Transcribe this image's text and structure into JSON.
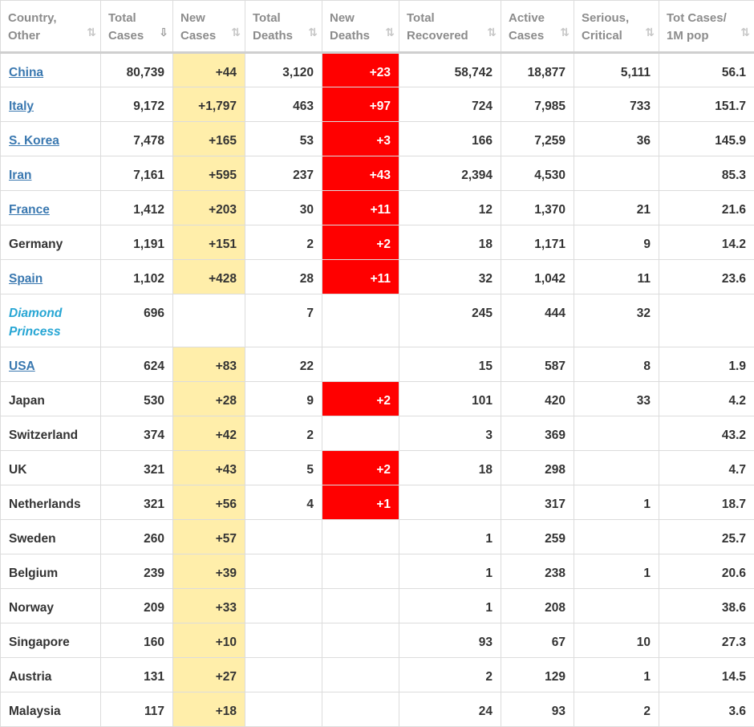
{
  "columns": [
    {
      "key": "country",
      "line1": "Country,",
      "line2": "Other"
    },
    {
      "key": "total_cases",
      "line1": "Total",
      "line2": "Cases",
      "sorted": true
    },
    {
      "key": "new_cases",
      "line1": "New",
      "line2": "Cases"
    },
    {
      "key": "total_deaths",
      "line1": "Total",
      "line2": "Deaths"
    },
    {
      "key": "new_deaths",
      "line1": "New",
      "line2": "Deaths"
    },
    {
      "key": "total_recovered",
      "line1": "Total",
      "line2": "Recovered"
    },
    {
      "key": "active_cases",
      "line1": "Active",
      "line2": "Cases"
    },
    {
      "key": "serious_critical",
      "line1": "Serious,",
      "line2": "Critical"
    },
    {
      "key": "tot_cases_per_1m",
      "line1": "Tot Cases/",
      "line2": "1M pop"
    }
  ],
  "sort_icons": {
    "unsorted": "⇅",
    "sorted": "⇩"
  },
  "colors": {
    "new_cases_bg": "#ffeeaa",
    "new_deaths_bg": "#ff0000",
    "link": "#3a78b0",
    "ship": "#27a6d4"
  },
  "rows": [
    {
      "country": "China",
      "type": "link",
      "total_cases": "80,739",
      "new_cases": "+44",
      "total_deaths": "3,120",
      "new_deaths": "+23",
      "total_recovered": "58,742",
      "active_cases": "18,877",
      "serious_critical": "5,111",
      "tot_cases_per_1m": "56.1"
    },
    {
      "country": "Italy",
      "type": "link",
      "total_cases": "9,172",
      "new_cases": "+1,797",
      "total_deaths": "463",
      "new_deaths": "+97",
      "total_recovered": "724",
      "active_cases": "7,985",
      "serious_critical": "733",
      "tot_cases_per_1m": "151.7"
    },
    {
      "country": "S. Korea",
      "type": "link",
      "total_cases": "7,478",
      "new_cases": "+165",
      "total_deaths": "53",
      "new_deaths": "+3",
      "total_recovered": "166",
      "active_cases": "7,259",
      "serious_critical": "36",
      "tot_cases_per_1m": "145.9"
    },
    {
      "country": "Iran",
      "type": "link",
      "total_cases": "7,161",
      "new_cases": "+595",
      "total_deaths": "237",
      "new_deaths": "+43",
      "total_recovered": "2,394",
      "active_cases": "4,530",
      "serious_critical": "",
      "tot_cases_per_1m": "85.3"
    },
    {
      "country": "France",
      "type": "link",
      "total_cases": "1,412",
      "new_cases": "+203",
      "total_deaths": "30",
      "new_deaths": "+11",
      "total_recovered": "12",
      "active_cases": "1,370",
      "serious_critical": "21",
      "tot_cases_per_1m": "21.6"
    },
    {
      "country": "Germany",
      "type": "plain",
      "total_cases": "1,191",
      "new_cases": "+151",
      "total_deaths": "2",
      "new_deaths": "+2",
      "total_recovered": "18",
      "active_cases": "1,171",
      "serious_critical": "9",
      "tot_cases_per_1m": "14.2"
    },
    {
      "country": "Spain",
      "type": "link",
      "total_cases": "1,102",
      "new_cases": "+428",
      "total_deaths": "28",
      "new_deaths": "+11",
      "total_recovered": "32",
      "active_cases": "1,042",
      "serious_critical": "11",
      "tot_cases_per_1m": "23.6"
    },
    {
      "country": "Diamond",
      "country2": "Princess",
      "type": "ship",
      "total_cases": "696",
      "new_cases": "",
      "total_deaths": "7",
      "new_deaths": "",
      "total_recovered": "245",
      "active_cases": "444",
      "serious_critical": "32",
      "tot_cases_per_1m": ""
    },
    {
      "country": "USA",
      "type": "link",
      "total_cases": "624",
      "new_cases": "+83",
      "total_deaths": "22",
      "new_deaths": "",
      "total_recovered": "15",
      "active_cases": "587",
      "serious_critical": "8",
      "tot_cases_per_1m": "1.9"
    },
    {
      "country": "Japan",
      "type": "plain",
      "total_cases": "530",
      "new_cases": "+28",
      "total_deaths": "9",
      "new_deaths": "+2",
      "total_recovered": "101",
      "active_cases": "420",
      "serious_critical": "33",
      "tot_cases_per_1m": "4.2"
    },
    {
      "country": "Switzerland",
      "type": "plain",
      "total_cases": "374",
      "new_cases": "+42",
      "total_deaths": "2",
      "new_deaths": "",
      "total_recovered": "3",
      "active_cases": "369",
      "serious_critical": "",
      "tot_cases_per_1m": "43.2"
    },
    {
      "country": "UK",
      "type": "plain",
      "total_cases": "321",
      "new_cases": "+43",
      "total_deaths": "5",
      "new_deaths": "+2",
      "total_recovered": "18",
      "active_cases": "298",
      "serious_critical": "",
      "tot_cases_per_1m": "4.7"
    },
    {
      "country": "Netherlands",
      "type": "plain",
      "total_cases": "321",
      "new_cases": "+56",
      "total_deaths": "4",
      "new_deaths": "+1",
      "total_recovered": "",
      "active_cases": "317",
      "serious_critical": "1",
      "tot_cases_per_1m": "18.7"
    },
    {
      "country": "Sweden",
      "type": "plain",
      "total_cases": "260",
      "new_cases": "+57",
      "total_deaths": "",
      "new_deaths": "",
      "total_recovered": "1",
      "active_cases": "259",
      "serious_critical": "",
      "tot_cases_per_1m": "25.7"
    },
    {
      "country": "Belgium",
      "type": "plain",
      "total_cases": "239",
      "new_cases": "+39",
      "total_deaths": "",
      "new_deaths": "",
      "total_recovered": "1",
      "active_cases": "238",
      "serious_critical": "1",
      "tot_cases_per_1m": "20.6"
    },
    {
      "country": "Norway",
      "type": "plain",
      "total_cases": "209",
      "new_cases": "+33",
      "total_deaths": "",
      "new_deaths": "",
      "total_recovered": "1",
      "active_cases": "208",
      "serious_critical": "",
      "tot_cases_per_1m": "38.6"
    },
    {
      "country": "Singapore",
      "type": "plain",
      "total_cases": "160",
      "new_cases": "+10",
      "total_deaths": "",
      "new_deaths": "",
      "total_recovered": "93",
      "active_cases": "67",
      "serious_critical": "10",
      "tot_cases_per_1m": "27.3"
    },
    {
      "country": "Austria",
      "type": "plain",
      "total_cases": "131",
      "new_cases": "+27",
      "total_deaths": "",
      "new_deaths": "",
      "total_recovered": "2",
      "active_cases": "129",
      "serious_critical": "1",
      "tot_cases_per_1m": "14.5"
    },
    {
      "country": "Malaysia",
      "type": "plain",
      "total_cases": "117",
      "new_cases": "+18",
      "total_deaths": "",
      "new_deaths": "",
      "total_recovered": "24",
      "active_cases": "93",
      "serious_critical": "2",
      "tot_cases_per_1m": "3.6"
    }
  ]
}
